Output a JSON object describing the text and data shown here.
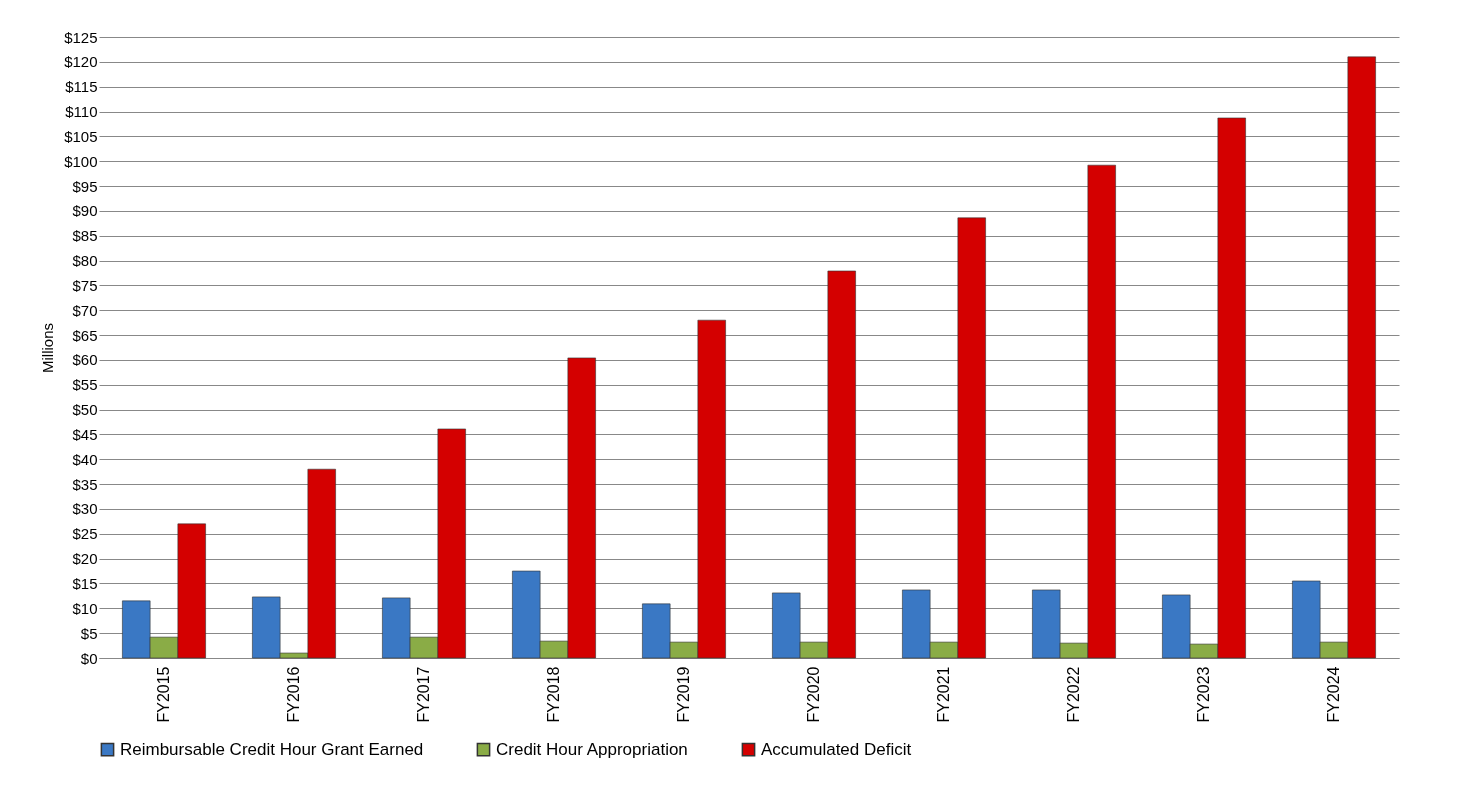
{
  "chart_data": {
    "type": "bar",
    "ylabel": "Millions",
    "categories": [
      "FY2015",
      "FY2016",
      "FY2017",
      "FY2018",
      "FY2019",
      "FY2020",
      "FY2021",
      "FY2022",
      "FY2023",
      "FY2024"
    ],
    "series": [
      {
        "name": "Reimbursable Credit Hour Grant Earned",
        "color": "#3a78c4",
        "values": [
          11.5,
          12.3,
          12.1,
          17.5,
          10.9,
          13.1,
          13.7,
          13.7,
          12.7,
          15.5
        ]
      },
      {
        "name": "Credit Hour Appropriation",
        "color": "#8aac46",
        "values": [
          4.2,
          1.0,
          4.2,
          3.4,
          3.2,
          3.2,
          3.2,
          3.0,
          2.8,
          3.2
        ]
      },
      {
        "name": "Accumulated Deficit",
        "color": "#d40000",
        "values": [
          27,
          38,
          46.1,
          60.4,
          68,
          77.9,
          88.6,
          99.2,
          108.7,
          121
        ]
      }
    ],
    "ylim": [
      0,
      125
    ],
    "yticks": [
      {
        "value": 0,
        "label": "$0"
      },
      {
        "value": 5,
        "label": "$5"
      },
      {
        "value": 10,
        "label": "$10"
      },
      {
        "value": 15,
        "label": "$15"
      },
      {
        "value": 20,
        "label": "$20"
      },
      {
        "value": 25,
        "label": "$25"
      },
      {
        "value": 30,
        "label": "$30"
      },
      {
        "value": 35,
        "label": "$35"
      },
      {
        "value": 40,
        "label": "$40"
      },
      {
        "value": 45,
        "label": "$45"
      },
      {
        "value": 50,
        "label": "$50"
      },
      {
        "value": 55,
        "label": "$55"
      },
      {
        "value": 60,
        "label": "$60"
      },
      {
        "value": 65,
        "label": "$65"
      },
      {
        "value": 70,
        "label": "$70"
      },
      {
        "value": 75,
        "label": "$75"
      },
      {
        "value": 80,
        "label": "$80"
      },
      {
        "value": 85,
        "label": "$85"
      },
      {
        "value": 90,
        "label": "$90"
      },
      {
        "value": 95,
        "label": "$95"
      },
      {
        "value": 100,
        "label": "$100"
      },
      {
        "value": 105,
        "label": "$105"
      },
      {
        "value": 110,
        "label": "$110"
      },
      {
        "value": 115,
        "label": "$115"
      },
      {
        "value": 120,
        "label": "$120"
      },
      {
        "value": 125,
        "label": "$125"
      }
    ],
    "grid": "y",
    "legend": "bottom"
  }
}
